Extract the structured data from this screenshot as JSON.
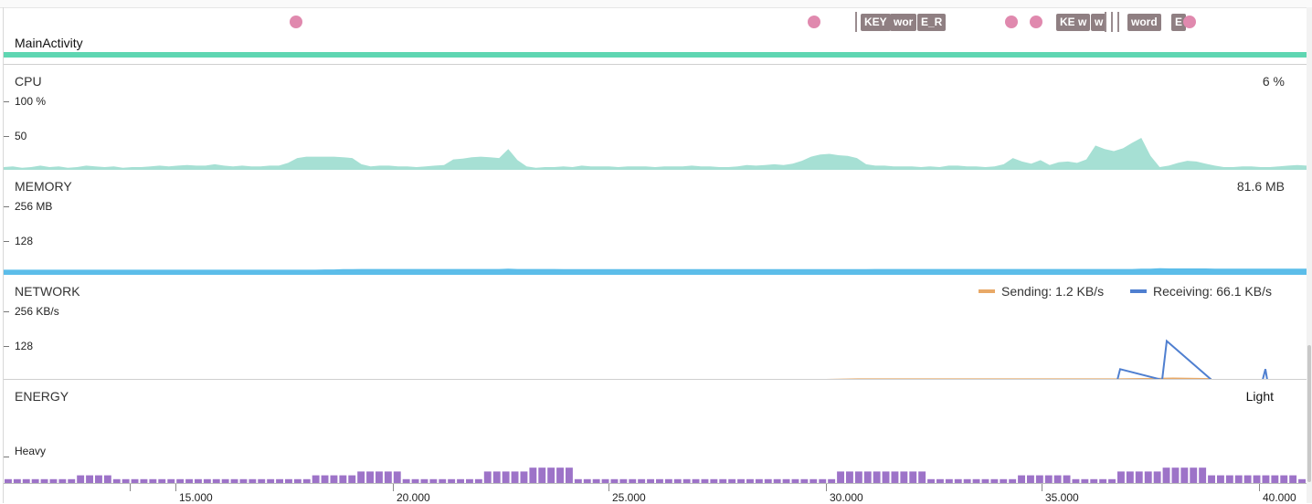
{
  "event_lane": {
    "activity_label": "MainActivity",
    "tags": [
      "KEY",
      "wor",
      "E_R",
      "KE",
      "w",
      "w",
      "word",
      "E"
    ]
  },
  "cpu": {
    "title": "CPU",
    "current": "6 %",
    "axis_max": "100 %",
    "axis_mid": "50",
    "series": [
      4,
      5,
      3,
      4,
      6,
      4,
      5,
      3,
      4,
      6,
      5,
      4,
      5,
      3,
      4,
      4,
      5,
      6,
      5,
      6,
      7,
      6,
      6,
      8,
      6,
      5,
      6,
      5,
      5,
      6,
      6,
      10,
      17,
      19,
      19,
      19,
      19,
      18,
      17,
      8,
      5,
      6,
      6,
      5,
      5,
      4,
      5,
      6,
      7,
      15,
      16,
      18,
      19,
      18,
      17,
      30,
      14,
      5,
      3,
      4,
      4,
      5,
      4,
      6,
      5,
      5,
      5,
      4,
      5,
      5,
      5,
      4,
      5,
      5,
      5,
      6,
      5,
      5,
      4,
      4,
      5,
      7,
      6,
      7,
      8,
      7,
      9,
      13,
      19,
      22,
      23,
      21,
      20,
      17,
      8,
      6,
      6,
      5,
      5,
      5,
      4,
      5,
      4,
      6,
      6,
      5,
      5,
      4,
      5,
      8,
      17,
      12,
      9,
      14,
      7,
      11,
      12,
      10,
      15,
      35,
      30,
      27,
      31,
      39,
      46,
      20,
      4,
      6,
      10,
      13,
      12,
      9,
      6,
      4,
      4,
      5,
      5,
      4,
      4,
      5,
      6,
      7,
      6
    ]
  },
  "memory": {
    "title": "MEMORY",
    "current": "81.6 MB",
    "axis_max": "256 MB",
    "axis_mid": "128",
    "series": [
      19,
      19,
      19,
      19,
      19,
      19,
      19,
      19,
      19,
      19,
      19,
      19,
      19,
      19,
      19,
      19,
      19,
      19,
      19,
      19,
      19,
      19,
      19,
      19,
      19,
      19,
      19,
      19,
      19,
      19,
      19,
      19,
      19,
      19,
      19,
      20,
      20,
      21,
      21,
      22,
      22,
      22,
      22,
      22,
      22,
      22,
      22,
      22,
      22,
      22,
      22,
      22,
      22,
      22,
      22,
      23,
      22,
      22,
      22,
      22,
      22,
      21,
      21,
      21,
      21,
      21,
      21,
      21,
      21,
      21,
      21,
      21,
      21,
      21,
      21,
      21,
      21,
      21,
      21,
      21,
      21,
      21,
      21,
      21,
      21,
      21,
      21,
      21,
      21,
      21,
      21,
      21,
      21,
      21,
      21,
      22,
      22,
      22,
      22,
      22,
      22,
      22,
      22,
      22,
      22,
      22,
      22,
      22,
      22,
      22,
      22,
      22,
      22,
      22,
      22,
      22,
      22,
      22,
      22,
      22,
      22,
      22,
      22,
      22,
      23,
      23,
      25,
      24,
      24,
      24,
      24,
      24,
      23,
      23,
      23,
      23,
      23,
      23,
      23,
      23,
      23,
      23,
      23
    ]
  },
  "network": {
    "title": "NETWORK",
    "axis_max": "256 KB/s",
    "axis_mid": "128",
    "sending_label": "Sending: 1.2 KB/s",
    "receiving_label": "Receiving: 66.1 KB/s",
    "sending_color": "#e8a967",
    "receiving_color": "#4f7fd0",
    "receiving_series": [
      [
        0,
        0
      ],
      [
        1219,
        0
      ],
      [
        1222,
        40
      ],
      [
        1268,
        0
      ],
      [
        1273,
        145
      ],
      [
        1322,
        0
      ],
      [
        1378,
        0
      ],
      [
        1381,
        40
      ],
      [
        1383,
        0
      ]
    ],
    "sending_series": [
      [
        0,
        0
      ],
      [
        900,
        0
      ],
      [
        935,
        2
      ],
      [
        1218,
        2
      ],
      [
        1280,
        5
      ],
      [
        1322,
        3
      ]
    ]
  },
  "energy": {
    "title": "ENERGY",
    "state": "Light",
    "axis_label": "Heavy",
    "color": "#9d73c8",
    "series": [
      1,
      1,
      1,
      1,
      1,
      1,
      1,
      1,
      2,
      2,
      2,
      2,
      1,
      1,
      1,
      1,
      1,
      1,
      1,
      1,
      1,
      1,
      1,
      1,
      1,
      1,
      1,
      1,
      1,
      1,
      1,
      1,
      1,
      1,
      2,
      2,
      2,
      2,
      2,
      3,
      3,
      3,
      3,
      3,
      1,
      1,
      1,
      1,
      1,
      1,
      1,
      1,
      1,
      3,
      3,
      3,
      3,
      3,
      4,
      4,
      4,
      4,
      4,
      1,
      1,
      1,
      1,
      1,
      1,
      1,
      1,
      1,
      1,
      1,
      1,
      1,
      1,
      1,
      1,
      1,
      1,
      1,
      1,
      1,
      1,
      1,
      1,
      1,
      1,
      1,
      1,
      1,
      3,
      3,
      3,
      3,
      3,
      3,
      3,
      3,
      3,
      3,
      1,
      1,
      1,
      1,
      1,
      1,
      1,
      1,
      1,
      1,
      2,
      2,
      2,
      2,
      2,
      2,
      1,
      1,
      1,
      1,
      1,
      3,
      3,
      3,
      3,
      3,
      4,
      4,
      4,
      4,
      4,
      2,
      2,
      2,
      2,
      2,
      2,
      2,
      2,
      2,
      2,
      1
    ]
  },
  "time_axis": {
    "labels": [
      "15.000",
      "20.000",
      "25.000",
      "30.000",
      "35.000",
      "40.000"
    ]
  }
}
